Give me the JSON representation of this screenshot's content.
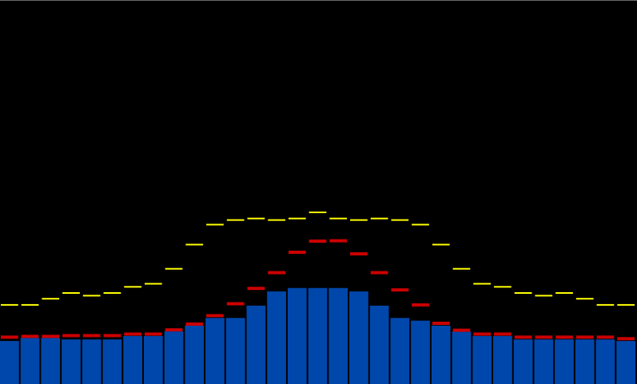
{
  "colors": {
    "background": "#000000",
    "bar": "#0047ab",
    "peak": "#cc0000",
    "max_hold": "#ffff00"
  },
  "levels": [
    0.112,
    0.12,
    0.12,
    0.116,
    0.116,
    0.116,
    0.125,
    0.125,
    0.137,
    0.152,
    0.172,
    0.172,
    0.204,
    0.241,
    0.25,
    0.25,
    0.25,
    0.241,
    0.204,
    0.172,
    0.165,
    0.152,
    0.137,
    0.125,
    0.125,
    0.116,
    0.116,
    0.116,
    0.116,
    0.116,
    0.112
  ],
  "peaks": [
    0.122,
    0.124,
    0.124,
    0.126,
    0.126,
    0.126,
    0.13,
    0.13,
    0.141,
    0.156,
    0.178,
    0.209,
    0.249,
    0.29,
    0.343,
    0.372,
    0.373,
    0.339,
    0.29,
    0.245,
    0.206,
    0.158,
    0.14,
    0.13,
    0.13,
    0.122,
    0.122,
    0.122,
    0.122,
    0.122,
    0.118
  ],
  "max_hold": [
    0.206,
    0.206,
    0.222,
    0.237,
    0.23,
    0.237,
    0.253,
    0.261,
    0.3,
    0.363,
    0.415,
    0.427,
    0.431,
    0.427,
    0.431,
    0.447,
    0.431,
    0.427,
    0.431,
    0.427,
    0.415,
    0.363,
    0.3,
    0.261,
    0.253,
    0.237,
    0.23,
    0.237,
    0.222,
    0.206,
    0.206
  ]
}
